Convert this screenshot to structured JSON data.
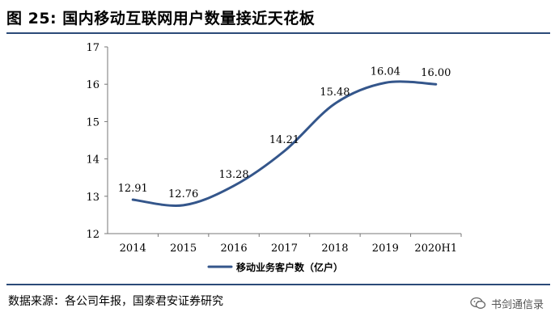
{
  "figure": {
    "title": "图 25:  国内移动互联网用户数量接近天花板",
    "source": "数据来源：各公司年报，国泰君安证券研究",
    "watermark": "书剑通信录"
  },
  "colors": {
    "series": "#34568b",
    "rule": "#2b4a78"
  },
  "chart_data": {
    "type": "line",
    "categories": [
      "2014",
      "2015",
      "2016",
      "2017",
      "2018",
      "2019",
      "2020H1"
    ],
    "series": [
      {
        "name": "移动业务客户数（亿户）",
        "values": [
          12.91,
          12.76,
          13.28,
          14.21,
          15.48,
          16.04,
          16.0
        ]
      }
    ],
    "data_labels": [
      "12.91",
      "12.76",
      "13.28",
      "14.21",
      "15.48",
      "16.04",
      "16.00"
    ],
    "ylim": [
      12,
      17
    ],
    "yticks": [
      12,
      13,
      14,
      15,
      16,
      17
    ],
    "legend": "bottom",
    "grid": false,
    "smooth": true
  }
}
